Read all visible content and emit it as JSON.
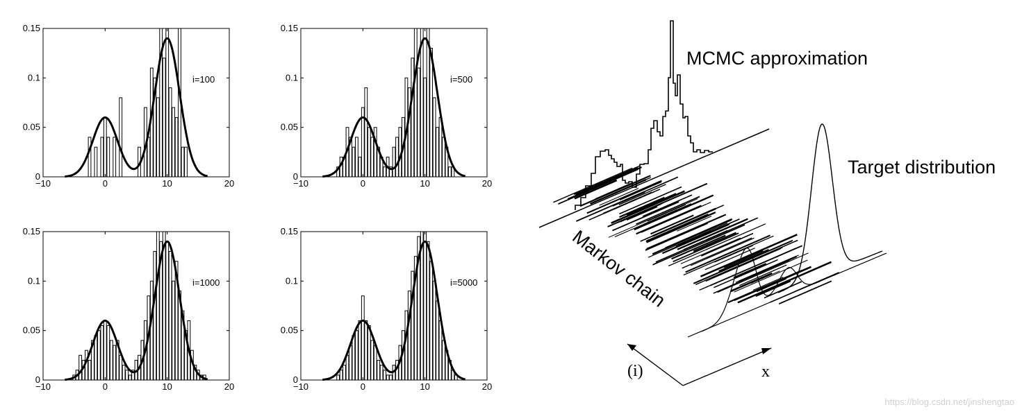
{
  "chart_data": [
    {
      "type": "bar",
      "annotation": "i=100",
      "xlim": [
        -10,
        20
      ],
      "ylim": [
        0,
        0.15
      ],
      "xticks": [
        "−10",
        "0",
        "10",
        "20"
      ],
      "yticks": [
        "0",
        "0.05",
        "0.1",
        "0.15"
      ],
      "bin_centers": [
        -2.5,
        -1.5,
        -0.5,
        0,
        0.5,
        1.5,
        2.5,
        5.5,
        6.5,
        7,
        7.5,
        8,
        8.5,
        9,
        9.5,
        10,
        10.5,
        11,
        11.5,
        12,
        12.5,
        13
      ],
      "bar_values": [
        0.04,
        0.03,
        0.04,
        0.06,
        0.04,
        0.04,
        0.08,
        0.03,
        0.07,
        0.04,
        0.11,
        0.1,
        0.08,
        0.15,
        0.12,
        0.15,
        0.09,
        0.07,
        0.06,
        0.15,
        0.03,
        0.03
      ],
      "curve": "0.06·N(0) + 0.14·N(10) target density"
    },
    {
      "type": "bar",
      "annotation": "i=500",
      "xlim": [
        -10,
        20
      ],
      "ylim": [
        0,
        0.15
      ],
      "xticks": [
        "−10",
        "0",
        "10",
        "20"
      ],
      "yticks": [
        "0",
        "0.05",
        "0.1",
        "0.15"
      ],
      "bin_centers": [
        -4,
        -3.5,
        -3,
        -2.5,
        -2,
        -1.5,
        -1,
        -0.5,
        0,
        0.5,
        1,
        1.5,
        2,
        2.5,
        3,
        3.5,
        4,
        4.5,
        5,
        5.5,
        6,
        6.5,
        7,
        7.5,
        8,
        8.5,
        9,
        9.5,
        10,
        10.5,
        11,
        11.5,
        12,
        12.5,
        13,
        13.5,
        14,
        14.5
      ],
      "bar_values": [
        0.01,
        0.02,
        0.02,
        0.05,
        0.04,
        0.03,
        0.04,
        0.02,
        0.07,
        0.09,
        0.05,
        0.04,
        0.05,
        0.03,
        0.02,
        0.01,
        0.02,
        0.01,
        0.03,
        0.04,
        0.05,
        0.06,
        0.1,
        0.09,
        0.12,
        0.15,
        0.11,
        0.15,
        0.1,
        0.15,
        0.13,
        0.08,
        0.05,
        0.06,
        0.04,
        0.03,
        0.01,
        0.01
      ],
      "curve": "0.06·N(0) + 0.14·N(10) target density"
    },
    {
      "type": "bar",
      "annotation": "i=1000",
      "xlim": [
        -10,
        20
      ],
      "ylim": [
        0,
        0.15
      ],
      "xticks": [
        "−10",
        "0",
        "10",
        "20"
      ],
      "yticks": [
        "0",
        "0.05",
        "0.1",
        "0.15"
      ],
      "bin_centers": [
        -5,
        -4.5,
        -4,
        -3.5,
        -3,
        -2.5,
        -2,
        -1.5,
        -1,
        -0.5,
        0,
        0.5,
        1,
        1.5,
        2,
        2.5,
        3,
        3.5,
        4,
        4.5,
        5,
        5.5,
        6,
        6.5,
        7,
        7.5,
        8,
        8.5,
        9,
        9.5,
        10,
        10.5,
        11,
        11.5,
        12,
        12.5,
        13,
        13.5,
        14,
        14.5,
        15,
        15.5,
        16
      ],
      "bar_values": [
        0.005,
        0.01,
        0.025,
        0.02,
        0.03,
        0.02,
        0.04,
        0.045,
        0.05,
        0.055,
        0.06,
        0.055,
        0.04,
        0.035,
        0.04,
        0.025,
        0.015,
        0.01,
        0.005,
        0.01,
        0.02,
        0.025,
        0.04,
        0.06,
        0.085,
        0.1,
        0.13,
        0.15,
        0.14,
        0.15,
        0.14,
        0.13,
        0.1,
        0.12,
        0.09,
        0.07,
        0.05,
        0.06,
        0.03,
        0.015,
        0.01,
        0.005,
        0.005
      ],
      "curve": "0.06·N(0) + 0.14·N(10) target density"
    },
    {
      "type": "bar",
      "annotation": "i=5000",
      "xlim": [
        -10,
        20
      ],
      "ylim": [
        0,
        0.15
      ],
      "xticks": [
        "−10",
        "0",
        "10",
        "20"
      ],
      "yticks": [
        "0",
        "0.05",
        "0.1",
        "0.15"
      ],
      "bin_centers": [
        -4,
        -3.5,
        -3,
        -2.5,
        -2,
        -1.5,
        -1,
        -0.5,
        0,
        0.5,
        1,
        1.5,
        2,
        2.5,
        3,
        3.5,
        4,
        4.5,
        5,
        5.5,
        6,
        6.5,
        7,
        7.5,
        8,
        8.5,
        9,
        9.5,
        10,
        10.5,
        11,
        11.5,
        12,
        12.5,
        13,
        13.5,
        14,
        14.5,
        15
      ],
      "bar_values": [
        0.005,
        0.01,
        0.015,
        0.025,
        0.035,
        0.045,
        0.05,
        0.06,
        0.085,
        0.06,
        0.055,
        0.04,
        0.035,
        0.02,
        0.015,
        0.01,
        0.005,
        0.005,
        0.015,
        0.02,
        0.035,
        0.05,
        0.07,
        0.09,
        0.11,
        0.125,
        0.145,
        0.15,
        0.15,
        0.14,
        0.12,
        0.1,
        0.08,
        0.06,
        0.04,
        0.03,
        0.02,
        0.01,
        0.005
      ],
      "curve": "0.06·N(0) + 0.14·N(10) target density"
    }
  ],
  "diagram": {
    "mcmc_label": "MCMC approximation",
    "target_label": "Target distribution",
    "chain_label": "Markov chain",
    "iteration_axis_label": "(i)",
    "x_axis_label": "x"
  },
  "watermark": "https://blog.csdn.net/jinshengtao"
}
